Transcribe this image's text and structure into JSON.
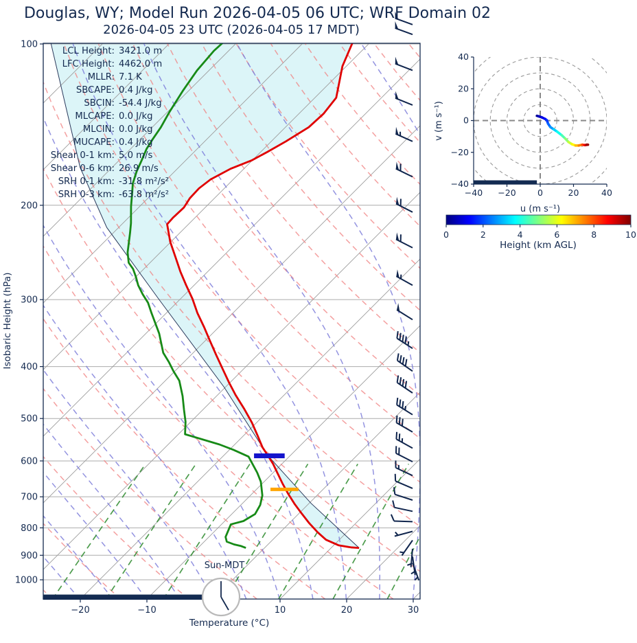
{
  "title": "Douglas, WY; Model Run 2026-04-05 06 UTC; WRF Domain 02",
  "subtitle": "2026-04-05 23 UTC  (2026-04-05 17 MDT)",
  "colors": {
    "navy_text": "#13294f",
    "temperature_line": "#e00000",
    "dewpoint_line": "#178a17",
    "parcel_line": "#2b3a5c",
    "cape_fill": "rgba(178,233,240,0.45)",
    "dry_adiabat": "#f08080",
    "moist_adiabat": "#7878d8",
    "mixing_ratio": "#2e8b2e",
    "isotherm": "#9c9c9c",
    "gridline": "#ababab",
    "lcl_marker": "#1414cc",
    "aux_marker": "#ffa500",
    "barb": "#10254d",
    "night_bar": "#132b52",
    "clock_border": "#b9b9b9"
  },
  "skewt": {
    "ylabel": "Isobaric Height (hPa)",
    "xlabel": "Temperature (°C)",
    "pressure_ticks": [
      100,
      200,
      300,
      400,
      500,
      600,
      700,
      800,
      900,
      1000
    ],
    "temp_ticks": [
      -20,
      -10,
      0,
      10,
      20,
      30
    ],
    "sun_label": "Sun-MDT",
    "clock_hour": 5,
    "stats": [
      {
        "label": "LCL Height",
        "value": "3421.0 m"
      },
      {
        "label": "LFC Height",
        "value": "4462.0 m"
      },
      {
        "label": "MLLR",
        "value": "7.1 K"
      },
      {
        "label": "SBCAPE",
        "value": "0.4 J/kg"
      },
      {
        "label": "SBCIN",
        "value": "-54.4 J/kg"
      },
      {
        "label": "MLCAPE",
        "value": "0.0 J/kg"
      },
      {
        "label": "MLCIN",
        "value": "0.0 J/kg"
      },
      {
        "label": "MUCAPE",
        "value": "0.4 J/kg"
      },
      {
        "label": "Shear 0-1 km",
        "value": "5.0 m/s"
      },
      {
        "label": "Shear 0-6 km",
        "value": "26.9 m/s"
      },
      {
        "label": "SRH 0-1 km",
        "value": "-31.8 m²/s²"
      },
      {
        "label": "SRH 0-3 km",
        "value": "-63.8 m²/s²"
      }
    ]
  },
  "hodograph": {
    "xlabel": "u (m s⁻¹)",
    "ylabel": "v (m s⁻¹)",
    "ticks": [
      -40,
      -20,
      0,
      20,
      40
    ],
    "ring_step": 10,
    "night_bar_u": [
      -40,
      -2
    ]
  },
  "colorbar": {
    "label": "Height (km AGL)",
    "min": 0,
    "max": 10,
    "ticks": [
      0,
      2,
      4,
      6,
      8,
      10
    ]
  },
  "chart_data": {
    "type": "skewt_logp_sounding",
    "pressure_range_hpa": [
      100,
      1088
    ],
    "temp_axis_range_c": [
      -25.7,
      30.9
    ],
    "temperature_profile_p_t": [
      [
        97,
        -63.1
      ],
      [
        110,
        -60.6
      ],
      [
        126,
        -56.8
      ],
      [
        135,
        -56.3
      ],
      [
        143,
        -56.5
      ],
      [
        152,
        -57.8
      ],
      [
        159,
        -59.0
      ],
      [
        165,
        -60.1
      ],
      [
        171,
        -62.0
      ],
      [
        179,
        -63.4
      ],
      [
        186,
        -63.8
      ],
      [
        194,
        -63.7
      ],
      [
        202,
        -63.2
      ],
      [
        211,
        -63.3
      ],
      [
        217,
        -63.2
      ],
      [
        234,
        -60.1
      ],
      [
        250,
        -57.0
      ],
      [
        266,
        -54.1
      ],
      [
        282,
        -51.2
      ],
      [
        299,
        -48.2
      ],
      [
        318,
        -45.3
      ],
      [
        337,
        -42.3
      ],
      [
        358,
        -39.3
      ],
      [
        380,
        -36.3
      ],
      [
        403,
        -33.3
      ],
      [
        428,
        -30.2
      ],
      [
        452,
        -27.3
      ],
      [
        479,
        -24.0
      ],
      [
        509,
        -20.7
      ],
      [
        537,
        -18.0
      ],
      [
        566,
        -15.4
      ],
      [
        587,
        -13.3
      ],
      [
        608,
        -11.3
      ],
      [
        632,
        -9.3
      ],
      [
        662,
        -6.9
      ],
      [
        692,
        -4.5
      ],
      [
        723,
        -2.0
      ],
      [
        752,
        0.4
      ],
      [
        784,
        3.0
      ],
      [
        815,
        5.6
      ],
      [
        842,
        8.0
      ],
      [
        862,
        10.7
      ],
      [
        870,
        12.9
      ],
      [
        872,
        14.2
      ]
    ],
    "dewpoint_profile_p_t": [
      [
        97,
        -82.0
      ],
      [
        103,
        -82.2
      ],
      [
        112,
        -81.8
      ],
      [
        122,
        -80.9
      ],
      [
        134,
        -79.7
      ],
      [
        143,
        -78.7
      ],
      [
        151,
        -78.1
      ],
      [
        157,
        -77.6
      ],
      [
        165,
        -76.6
      ],
      [
        173,
        -75.7
      ],
      [
        182,
        -74.5
      ],
      [
        190,
        -73.1
      ],
      [
        201,
        -71.3
      ],
      [
        216,
        -68.8
      ],
      [
        225,
        -67.5
      ],
      [
        245,
        -64.9
      ],
      [
        256,
        -63.2
      ],
      [
        263,
        -61.6
      ],
      [
        272,
        -60.0
      ],
      [
        282,
        -58.4
      ],
      [
        293,
        -56.4
      ],
      [
        304,
        -54.3
      ],
      [
        318,
        -52.2
      ],
      [
        347,
        -48.0
      ],
      [
        377,
        -44.5
      ],
      [
        392,
        -42.3
      ],
      [
        408,
        -40.2
      ],
      [
        425,
        -37.9
      ],
      [
        454,
        -35.1
      ],
      [
        482,
        -32.8
      ],
      [
        507,
        -30.8
      ],
      [
        535,
        -29.0
      ],
      [
        559,
        -22.3
      ],
      [
        572,
        -19.4
      ],
      [
        589,
        -16.1
      ],
      [
        631,
        -12.4
      ],
      [
        656,
        -10.5
      ],
      [
        696,
        -8.2
      ],
      [
        725,
        -7.1
      ],
      [
        754,
        -6.5
      ],
      [
        777,
        -7.2
      ],
      [
        788,
        -8.6
      ],
      [
        832,
        -7.5
      ],
      [
        849,
        -6.6
      ],
      [
        859,
        -5.1
      ],
      [
        865,
        -3.8
      ],
      [
        872,
        -2.8
      ]
    ],
    "parcel_profile_p_t": [
      [
        97,
        -109.0
      ],
      [
        170,
        -84.8
      ],
      [
        220,
        -71.8
      ],
      [
        299,
        -53.3
      ],
      [
        437,
        -30.2
      ],
      [
        587,
        -13.3
      ],
      [
        720,
        0.3
      ],
      [
        872,
        14.2
      ]
    ],
    "lcl_marker": {
      "pressure": 587,
      "temp_c": -13.1,
      "half_width_c": 2.3
    },
    "aux_marker": {
      "pressure": 678,
      "temp_c": -5.8,
      "half_width_c": 2.1
    },
    "night_bar_temp_range_c": [
      -25.6,
      -1.5
    ],
    "winds_p_kt_dir": [
      [
        92,
        50,
        290
      ],
      [
        96,
        50,
        290
      ],
      [
        112,
        50,
        291
      ],
      [
        130,
        52,
        292
      ],
      [
        152,
        55,
        294
      ],
      [
        177,
        58,
        296
      ],
      [
        206,
        60,
        297
      ],
      [
        240,
        58,
        297
      ],
      [
        282,
        56,
        299
      ],
      [
        327,
        52,
        302
      ],
      [
        370,
        47,
        303
      ],
      [
        408,
        42,
        305
      ],
      [
        448,
        40,
        304
      ],
      [
        492,
        36,
        302
      ],
      [
        530,
        30,
        300
      ],
      [
        568,
        25,
        299
      ],
      [
        602,
        20,
        297
      ],
      [
        639,
        15,
        295
      ],
      [
        675,
        12,
        293
      ],
      [
        710,
        10,
        288
      ],
      [
        745,
        8,
        282
      ],
      [
        779,
        8,
        272
      ],
      [
        812,
        7,
        255
      ],
      [
        844,
        5,
        215
      ],
      [
        875,
        6,
        185
      ],
      [
        905,
        5,
        172
      ],
      [
        930,
        5,
        160
      ]
    ],
    "hodograph_trace_h_u_v": [
      [
        0,
        -2,
        3
      ],
      [
        0.4,
        -1,
        2.7
      ],
      [
        0.8,
        1,
        2
      ],
      [
        1.2,
        3,
        1
      ],
      [
        1.6,
        4,
        0.2
      ],
      [
        2,
        4.7,
        -1.9
      ],
      [
        2.5,
        6.1,
        -4.1
      ],
      [
        3,
        8.1,
        -5.5
      ],
      [
        3.6,
        10.2,
        -7
      ],
      [
        4.2,
        12.9,
        -9.2
      ],
      [
        4.8,
        15,
        -11.3
      ],
      [
        5.4,
        17,
        -13.5
      ],
      [
        6,
        19.1,
        -14.9
      ],
      [
        6.6,
        21.2,
        -15.7
      ],
      [
        7.2,
        23.2,
        -15.7
      ],
      [
        7.8,
        25.3,
        -15.2
      ],
      [
        8.4,
        26.5,
        -15.4
      ],
      [
        9,
        27.3,
        -15.4
      ],
      [
        9.5,
        28,
        -15.2
      ],
      [
        10,
        28.7,
        -15.2
      ]
    ]
  }
}
